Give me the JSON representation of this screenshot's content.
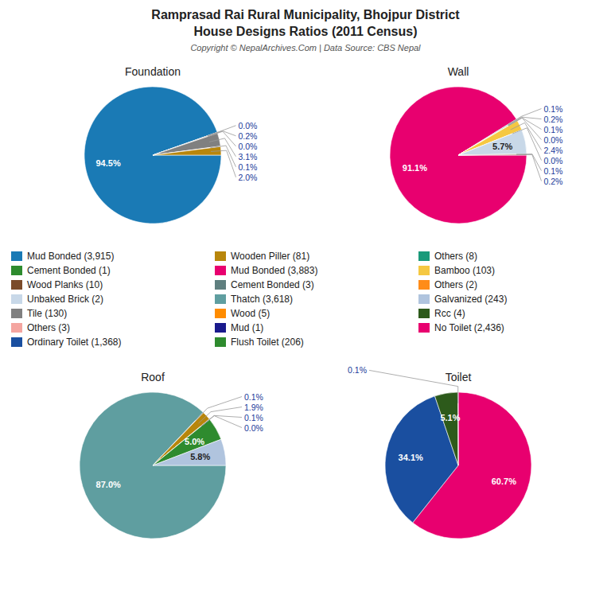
{
  "title": "Ramprasad Rai Rural Municipality, Bhojpur District",
  "subtitle": "House Designs Ratios (2011 Census)",
  "annotations": [
    "Copyright © NepalArchives.Com | Data Source: CBS Nepal"
  ],
  "legend_entries": [
    {
      "name": "Mud Bonded (3,915)",
      "color": "#1a7ab5"
    },
    {
      "name": "Wooden Piller (81)",
      "color": "#b8860b"
    },
    {
      "name": "Others (8)",
      "color": "#1a9a7a"
    },
    {
      "name": "Cement Bonded (1)",
      "color": "#2e8b2e"
    },
    {
      "name": "Mud Bonded (3,883)",
      "color": "#e8006f"
    },
    {
      "name": "Bamboo (103)",
      "color": "#f5c842"
    },
    {
      "name": "Wood Planks (10)",
      "color": "#7b4b2a"
    },
    {
      "name": "Cement Bonded (3)",
      "color": "#5f7f7f"
    },
    {
      "name": "Others (2)",
      "color": "#ff8c19"
    },
    {
      "name": "Unbaked Brick (2)",
      "color": "#c8d8e8"
    },
    {
      "name": "Thatch (3,618)",
      "color": "#5f9ea0"
    },
    {
      "name": "Galvanized (243)",
      "color": "#b0c4de"
    },
    {
      "name": "Tile (130)",
      "color": "#808080"
    },
    {
      "name": "Wood (5)",
      "color": "#ff8c00"
    },
    {
      "name": "Rcc (4)",
      "color": "#2d5a1b"
    },
    {
      "name": "Others (3)",
      "color": "#f4a5a0"
    },
    {
      "name": "Mud (1)",
      "color": "#1a1a8c"
    },
    {
      "name": "No Toilet (2,436)",
      "color": "#e8006f"
    },
    {
      "name": "Ordinary Toilet (1,368)",
      "color": "#1a4fa0"
    },
    {
      "name": "Flush Toilet (206)",
      "color": "#2e8b2e"
    }
  ],
  "chart_data": [
    {
      "type": "pie",
      "title": "Foundation",
      "values": [
        94.5,
        0.0,
        0.2,
        0.0,
        3.1,
        0.1,
        2.0
      ],
      "value_labels": [
        "94.5%",
        "0.0%",
        "0.2%",
        "0.0%",
        "3.1%",
        "0.1%",
        "2.0%"
      ],
      "colors": [
        "#1a7ab5",
        "#2e8b2e",
        "#7b4b2a",
        "#c8d8e8",
        "#808080",
        "#f4a5a0",
        "#b8860b"
      ],
      "data_labels": true
    },
    {
      "type": "pie",
      "title": "Wall",
      "values": [
        91.1,
        0.1,
        0.2,
        0.1,
        0.0,
        2.4,
        0.0,
        5.7,
        0.1,
        0.2
      ],
      "value_labels": [
        "91.1%",
        "0.1%",
        "0.2%",
        "0.1%",
        "0.0%",
        "2.4%",
        "0.0%",
        "5.7%",
        "0.1%",
        "0.2%"
      ],
      "colors": [
        "#e8006f",
        "#5f7f7f",
        "#1a9a7a",
        "#ff8c00",
        "#1a1a8c",
        "#f5c842",
        "#ff8c19",
        "#c8d8e8",
        "#2d5a1b",
        "#7b4b2a"
      ],
      "data_labels": true
    },
    {
      "type": "pie",
      "title": "Roof",
      "values": [
        87.0,
        0.1,
        1.9,
        0.1,
        0.0,
        5.0,
        5.8
      ],
      "value_labels": [
        "87.0%",
        "0.1%",
        "1.9%",
        "0.1%",
        "0.0%",
        "5.0%",
        "5.8%"
      ],
      "colors": [
        "#5f9ea0",
        "#696969",
        "#b8860b",
        "#ff8c00",
        "#1a1a8c",
        "#2e8b2e",
        "#b0c4de"
      ],
      "data_labels": true
    },
    {
      "type": "pie",
      "title": "Toilet",
      "values": [
        60.7,
        34.1,
        5.1,
        0.1
      ],
      "value_labels": [
        "60.7%",
        "34.1%",
        "5.1%",
        "0.1%"
      ],
      "colors": [
        "#e8006f",
        "#1a4fa0",
        "#2d5a1b",
        "#8b0000"
      ],
      "data_labels": true
    }
  ]
}
